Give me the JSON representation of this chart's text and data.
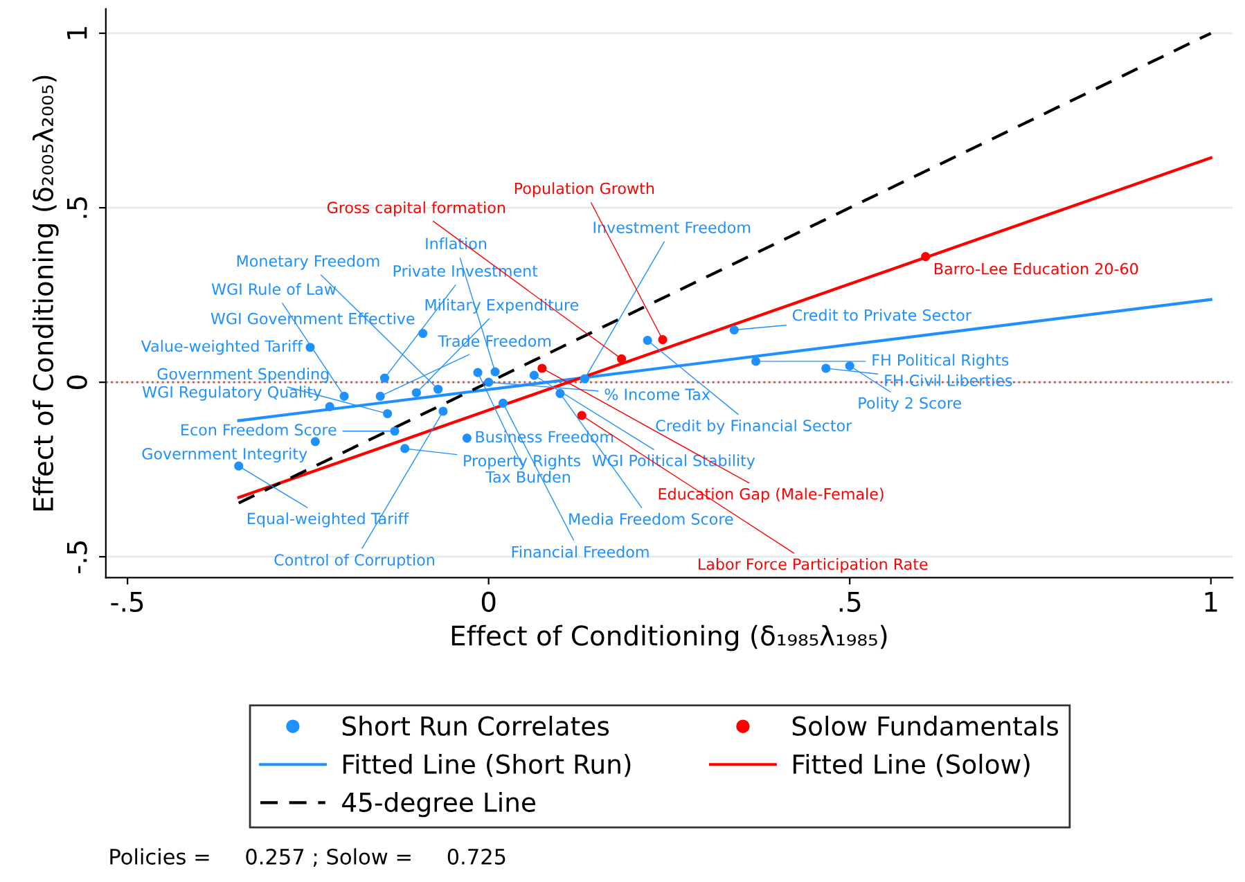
{
  "chart_data": {
    "type": "scatter",
    "xlabel": "Effect of Conditioning (δ₁₉₈₅λ₁₉₈₅)",
    "ylabel": "Effect of Conditioning (δ₂₀₀₅λ₂₀₀₅)",
    "xlim": [
      -0.53,
      1.03
    ],
    "ylim": [
      -0.56,
      1.07
    ],
    "xticks": [
      {
        "value": -0.5,
        "label": "-.5"
      },
      {
        "value": 0,
        "label": "0"
      },
      {
        "value": 0.5,
        "label": ".5"
      },
      {
        "value": 1,
        "label": "1"
      }
    ],
    "yticks": [
      {
        "value": -0.5,
        "label": "-.5"
      },
      {
        "value": 0,
        "label": "0"
      },
      {
        "value": 0.5,
        "label": ".5"
      },
      {
        "value": 1,
        "label": "1"
      }
    ],
    "grid": "y",
    "legend": "bottom",
    "ref_lines": [
      {
        "axis": "y",
        "value": 0,
        "label": null,
        "color": "#c0504d",
        "line_style": "dotted"
      }
    ],
    "series": [
      {
        "name": "Short Run Correlates",
        "color": "#1e90ff",
        "marker": "circle",
        "x": [
          -0.346,
          -0.247,
          -0.091,
          -0.22,
          -0.13,
          -0.24,
          -0.03,
          -0.116,
          -0.14,
          -0.2,
          -0.15,
          -0.1,
          -0.144,
          0.0,
          -0.015,
          0.009,
          0.22,
          0.34,
          0.063,
          0.099,
          0.133,
          -0.063,
          0.02,
          0.37,
          0.467,
          0.5,
          -0.07
        ],
        "values": [
          -0.24,
          0.1,
          0.14,
          -0.07,
          -0.14,
          -0.17,
          -0.16,
          -0.19,
          -0.09,
          -0.04,
          -0.04,
          -0.03,
          0.012,
          0.0,
          0.028,
          0.03,
          0.12,
          0.15,
          0.02,
          -0.032,
          0.01,
          -0.083,
          -0.06,
          0.06,
          0.04,
          0.047,
          -0.02
        ],
        "value_labels": [
          "Equal-weighted Tariff",
          "Value-weighted Tariff",
          "WGI Government Effective",
          "WGI Regulatory Quality",
          "Econ Freedom Score",
          "Government Integrity",
          "Business Freedom",
          "Property Rights",
          "Government Spending",
          "WGI Rule of Law",
          "Trade Freedom",
          "Military Expenditure",
          "Private Investment",
          "% Income Tax",
          "Tax Burden",
          "Inflation",
          "Credit by Financial Sector",
          "Credit to Private Sector",
          "WGI Political Stability",
          "Media Freedom Score",
          "Investment Freedom",
          "Control of Corruption",
          "Financial Freedom",
          "FH Political Rights",
          "FH Civil Liberties",
          "Polity 2 Score",
          "Monetary Freedom"
        ]
      },
      {
        "name": "Solow Fundamentals",
        "color": "#ff0000",
        "marker": "circle",
        "x": [
          0.605,
          0.241,
          0.184,
          0.074,
          0.129
        ],
        "values": [
          0.36,
          0.122,
          0.067,
          0.04,
          -0.095
        ],
        "value_labels": [
          "Barro-Lee Education 20-60",
          "Population Growth",
          "Gross capital formation",
          "Education Gap (Male-Female)",
          "Labor Force Participation Rate"
        ]
      },
      {
        "name": "Fitted Line (Short Run)",
        "type": "line",
        "color": "#1e90ff",
        "line_style": "solid",
        "x": [
          -0.346,
          1.0
        ],
        "values": [
          -0.11,
          0.237
        ]
      },
      {
        "name": "Fitted Line (Solow)",
        "type": "line",
        "color": "#ff0000",
        "line_style": "solid",
        "x": [
          -0.346,
          1.0
        ],
        "values": [
          -0.33,
          0.643
        ]
      },
      {
        "name": "45-degree Line",
        "type": "line",
        "color": "#000000",
        "line_style": "dashed",
        "x": [
          -0.346,
          1.0
        ],
        "values": [
          -0.346,
          1.0
        ]
      }
    ],
    "annotations": [
      "Policies =     0.257 ; Solow =     0.725"
    ]
  }
}
